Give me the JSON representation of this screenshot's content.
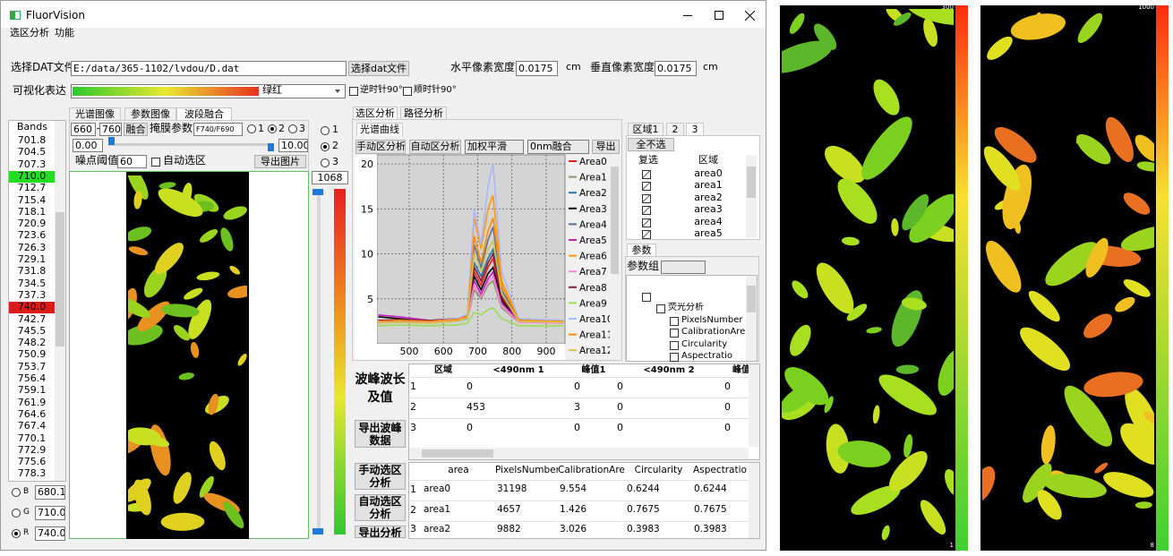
{
  "window": {
    "title": "FluorVision",
    "menu": [
      "选区分析",
      "功能"
    ]
  },
  "file_row": {
    "label": "选择DAT文件",
    "path": "E:/data/365-1102/lvdou/D.dat",
    "button": "选择dat文件",
    "h_label": "水平像素宽度",
    "h_value": "0.0175",
    "h_unit": "cm",
    "v_label": "垂直像素宽度",
    "v_value": "0.0175",
    "v_unit": "cm"
  },
  "vis_row": {
    "label": "可视化表达",
    "colormap": "绿红",
    "ccw": "逆时针90°",
    "cw": "顺时针90°"
  },
  "bands": {
    "header": "Bands",
    "items": [
      "701.8",
      "704.5",
      "707.3",
      "710.0",
      "712.7",
      "715.4",
      "718.1",
      "720.9",
      "723.6",
      "726.3",
      "729.1",
      "731.8",
      "734.5",
      "737.3",
      "740.0",
      "742.7",
      "745.5",
      "748.2",
      "750.9",
      "753.7",
      "756.4",
      "759.1",
      "761.9",
      "764.6",
      "767.4",
      "770.1",
      "772.9",
      "775.6",
      "778.3"
    ],
    "selected": [
      {
        "item": 3,
        "color": "#22dd22"
      },
      {
        "item": 14,
        "color": "#dd1a1a"
      }
    ]
  },
  "channels": [
    {
      "name": "B",
      "value": "680.1"
    },
    {
      "name": "G",
      "value": "710.0"
    },
    {
      "name": "R",
      "value": "740.0"
    }
  ],
  "image_tabs": [
    "光谱图像",
    "参数图像",
    "波段融合"
  ],
  "fusion": {
    "from": "660",
    "sep": "~",
    "to": "760",
    "button": "融合",
    "mask_label": "掩膜参数",
    "mask": "F740/F690",
    "radios": [
      "1",
      "2",
      "3"
    ],
    "min": "0.00",
    "max": "10.00",
    "noise_label": "噪点阈值",
    "noise": "60",
    "auto": "自动选区",
    "export": "导出图片"
  },
  "side": {
    "radios": [
      "1",
      "2",
      "3"
    ],
    "value": "1068"
  },
  "analysis_tabs": [
    "选区分析",
    "路径分析"
  ],
  "spectrum": {
    "tab": "光谱曲线",
    "buttons": [
      "手动区分析",
      "自动区分析"
    ],
    "smooth": "加权平滑",
    "fusion": "0nm融合",
    "export": "导出"
  },
  "chart_data": {
    "type": "line",
    "x": [
      410,
      470,
      560,
      640,
      670,
      690,
      710,
      730,
      745,
      770,
      820,
      950
    ],
    "series": [
      {
        "name": "Area0",
        "color": "#e8201a",
        "values": [
          2.5,
          2.6,
          2.5,
          2.7,
          3.0,
          8.0,
          6.5,
          8.5,
          9.5,
          5.0,
          2.6,
          2.5
        ]
      },
      {
        "name": "Area1",
        "color": "#7f9a6a",
        "values": [
          2.3,
          2.4,
          2.3,
          2.5,
          2.8,
          6.0,
          5.0,
          6.5,
          7.0,
          4.0,
          2.4,
          2.3
        ]
      },
      {
        "name": "Area2",
        "color": "#1f77b4",
        "values": [
          2.6,
          2.5,
          2.6,
          2.8,
          3.1,
          9.0,
          7.5,
          9.5,
          10.5,
          5.5,
          2.7,
          2.6
        ]
      },
      {
        "name": "Area3",
        "color": "#000000",
        "values": [
          3.0,
          2.8,
          2.5,
          2.6,
          3.0,
          7.5,
          6.0,
          7.8,
          8.5,
          4.8,
          2.5,
          2.4
        ]
      },
      {
        "name": "Area4",
        "color": "#5b6f9c",
        "values": [
          2.4,
          2.5,
          2.4,
          2.6,
          2.9,
          11.0,
          8.5,
          11.5,
          13.0,
          6.0,
          2.5,
          2.4
        ]
      },
      {
        "name": "Area5",
        "color": "#c020c0",
        "values": [
          3.2,
          3.0,
          2.6,
          2.7,
          3.1,
          7.0,
          5.5,
          7.2,
          8.0,
          4.5,
          2.6,
          2.5
        ]
      },
      {
        "name": "Area6",
        "color": "#ff9900",
        "values": [
          2.5,
          2.6,
          2.5,
          2.8,
          3.2,
          14.0,
          10.5,
          15.0,
          16.5,
          7.0,
          2.7,
          2.6
        ]
      },
      {
        "name": "Area7",
        "color": "#ff88cc",
        "values": [
          2.4,
          2.4,
          2.4,
          2.6,
          2.9,
          6.5,
          5.2,
          6.8,
          7.5,
          4.2,
          2.4,
          2.3
        ]
      },
      {
        "name": "Area8",
        "color": "#8b1a3a",
        "values": [
          2.6,
          2.7,
          2.6,
          2.8,
          3.1,
          8.5,
          7.0,
          9.0,
          10.0,
          5.2,
          2.6,
          2.5
        ]
      },
      {
        "name": "Area9",
        "color": "#99dd55",
        "values": [
          2.0,
          2.1,
          2.0,
          2.1,
          2.3,
          3.5,
          3.2,
          3.8,
          4.0,
          2.8,
          2.0,
          2.0
        ]
      },
      {
        "name": "Area10",
        "color": "#aab8ff",
        "values": [
          2.5,
          2.6,
          2.5,
          2.8,
          3.3,
          15.0,
          11.0,
          17.5,
          20.0,
          8.0,
          2.8,
          2.6
        ]
      },
      {
        "name": "Area11",
        "color": "#ff8c00",
        "values": [
          2.5,
          2.6,
          2.5,
          2.7,
          3.1,
          12.0,
          9.0,
          12.5,
          14.0,
          6.5,
          2.6,
          2.5
        ]
      },
      {
        "name": "Area12",
        "color": "#d4c84a",
        "values": [
          2.3,
          2.4,
          2.3,
          2.5,
          2.9,
          10.0,
          8.0,
          10.5,
          11.5,
          5.6,
          2.5,
          2.4
        ]
      }
    ],
    "xlim": [
      406,
      955
    ],
    "ylim": [
      0,
      21
    ],
    "xticks": [
      500,
      600,
      700,
      800,
      900
    ],
    "yticks": [
      5,
      10,
      15,
      20
    ],
    "grid": true
  },
  "area_panel": {
    "tabs": [
      "区域1",
      "2",
      "3"
    ],
    "button": "全不选",
    "columns": [
      "复选",
      "区域"
    ],
    "rows": [
      "area0",
      "area1",
      "area2",
      "area3",
      "area4",
      "area5"
    ]
  },
  "param_panel": {
    "tab": "参数",
    "group_label": "参数组",
    "tree_root": "荧光分析",
    "tree_items": [
      "PixelsNumber",
      "CalibrationArea",
      "Circularity",
      "Aspectratio"
    ]
  },
  "peak_table": {
    "label": "波峰波长及值",
    "button": "导出波峰数据",
    "columns": [
      "区域",
      "<490nm 1",
      "峰值1",
      "<490nm 2",
      "峰值"
    ],
    "rows": [
      {
        "index": "1",
        "cells": [
          "0",
          "0",
          "0",
          "0"
        ]
      },
      {
        "index": "2",
        "cells": [
          "453",
          "3",
          "0",
          "0"
        ]
      },
      {
        "index": "3",
        "cells": [
          "0",
          "0",
          "0",
          "0"
        ]
      }
    ]
  },
  "stats_table": {
    "buttons": [
      "手动选区分析",
      "自动选区分析",
      "导出分析"
    ],
    "columns": [
      "area",
      "PixelsNumber",
      "CalibrationArea",
      "Circularity",
      "Aspectratio"
    ],
    "rows": [
      {
        "index": "1",
        "cells": [
          "area0",
          "31198",
          "9.554",
          "0.6244",
          "0.6244"
        ]
      },
      {
        "index": "2",
        "cells": [
          "area1",
          "4657",
          "1.426",
          "0.7675",
          "0.7675"
        ]
      },
      {
        "index": "3",
        "cells": [
          "area2",
          "9882",
          "3.026",
          "0.3983",
          "0.3983"
        ]
      }
    ]
  },
  "result_images": [
    {
      "max": "300",
      "min": "1"
    },
    {
      "max": "1000",
      "min": "8"
    }
  ]
}
